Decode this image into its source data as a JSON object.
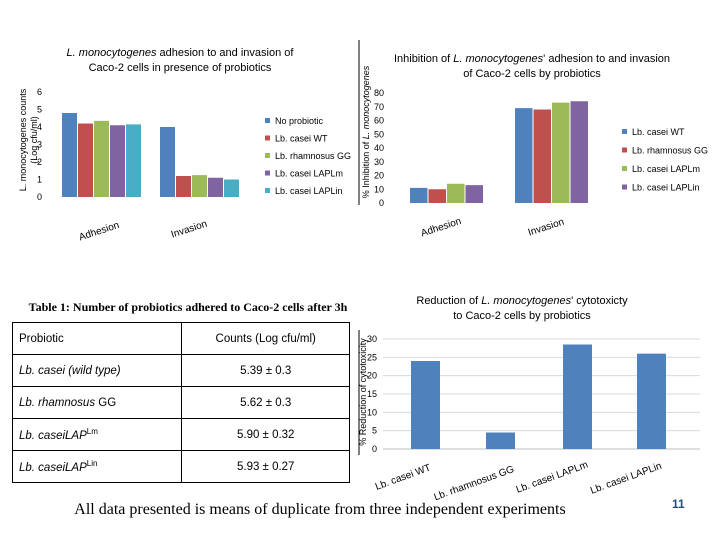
{
  "chart_data": [
    {
      "type": "bar",
      "title": "L. monocytogenes adhesion to and invasion of Caco-2 cells in presence of probiotics",
      "ylabel": "L. monocytogenes counts (Log cfu/ml)",
      "xlabel": "",
      "ylim": [
        0,
        6
      ],
      "yticks": [
        0,
        1,
        2,
        3,
        4,
        5,
        6
      ],
      "categories": [
        "Adhesion",
        "Invasion"
      ],
      "legend_position": "right",
      "series": [
        {
          "name": "No probiotic",
          "values": [
            4.8,
            4.0
          ],
          "color": "#4f81bd"
        },
        {
          "name": "Lb. casei WT",
          "values": [
            4.2,
            1.2
          ],
          "color": "#c0504d"
        },
        {
          "name": "Lb. rhamnosus GG",
          "values": [
            4.35,
            1.25
          ],
          "color": "#9bbb59"
        },
        {
          "name": "Lb. casei LAPLm",
          "values": [
            4.1,
            1.1
          ],
          "color": "#8064a2"
        },
        {
          "name": "Lb. casei LAPLin",
          "values": [
            4.15,
            1.0
          ],
          "color": "#4bacc6"
        }
      ]
    },
    {
      "type": "bar",
      "title": "Inhibition of L. monocytogenes' adhesion to and invasion of Caco-2 cells by probiotics",
      "ylabel": "% Inhibition of L. monocytogenes",
      "xlabel": "",
      "ylim": [
        0,
        80
      ],
      "yticks": [
        0,
        10,
        20,
        30,
        40,
        50,
        60,
        70,
        80
      ],
      "categories": [
        "Adhesion",
        "Invasion"
      ],
      "legend_position": "right",
      "series": [
        {
          "name": "Lb. casei WT",
          "values": [
            11,
            69
          ],
          "color": "#4f81bd"
        },
        {
          "name": "Lb. rhamnosus GG",
          "values": [
            10,
            68
          ],
          "color": "#c0504d"
        },
        {
          "name": "Lb. casei LAPLm",
          "values": [
            14,
            73
          ],
          "color": "#9bbb59"
        },
        {
          "name": "Lb. casei LAPLin",
          "values": [
            13,
            74
          ],
          "color": "#8064a2"
        }
      ]
    },
    {
      "type": "bar",
      "title": "Reduction of L. monocytogenes' cytotoxicty to Caco-2 cells by probiotics",
      "ylabel": "% Reduction of cytotoxicity",
      "xlabel": "",
      "ylim": [
        0,
        30
      ],
      "yticks": [
        0,
        5,
        10,
        15,
        20,
        25,
        30
      ],
      "categories": [
        "Lb. casei WT",
        "Lb. rhamnosus GG",
        "Lb. casei LAPLm",
        "Lb. casei LAPLin"
      ],
      "values": [
        24,
        4.5,
        28.5,
        26
      ],
      "color": "#4f81bd"
    }
  ],
  "table": {
    "title": "Table 1: Number of probiotics adhered to Caco-2 cells after 3h",
    "headers": [
      "Probiotic",
      "Counts (Log cfu/ml)"
    ],
    "rows": [
      {
        "name": "Lb. casei",
        "suffix": "(wild type)",
        "sup": "",
        "value": "5.39 ± 0.3"
      },
      {
        "name": "Lb. rhamnosus",
        "suffix": "GG",
        "sup": "",
        "value": "5.62 ± 0.3"
      },
      {
        "name": "Lb. caseiLAP",
        "suffix": "",
        "sup": "Lm",
        "value": "5.90 ± 0.32"
      },
      {
        "name": "Lb. caseiLAP",
        "suffix": "",
        "sup": "Lin",
        "value": "5.93 ± 0.27"
      }
    ]
  },
  "footer": "All data presented is means of duplicate from three independent experiments",
  "page_number": "11"
}
